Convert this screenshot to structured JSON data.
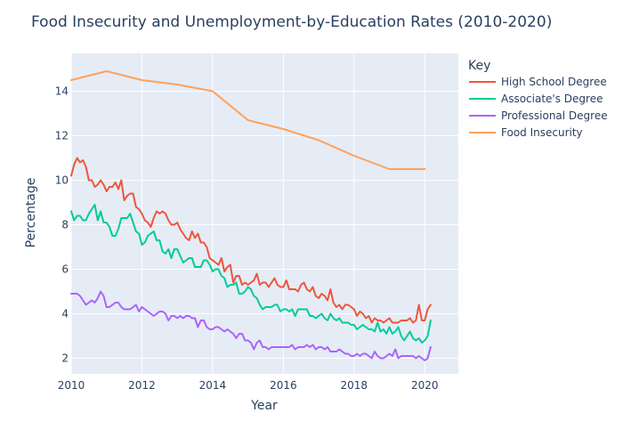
{
  "chart_data": {
    "type": "line",
    "title": "Food Insecurity and Unemployment-by-Education Rates (2010-2020)",
    "xlabel": "Year",
    "ylabel": "Percentage",
    "xlim": [
      2010,
      2020.95
    ],
    "ylim": [
      1.3,
      15.7
    ],
    "xticks": [
      2010,
      2012,
      2014,
      2016,
      2018,
      2020
    ],
    "yticks": [
      2,
      4,
      6,
      8,
      10,
      12,
      14
    ],
    "grid": true,
    "legend": {
      "title": "Key",
      "placement": "right"
    },
    "series": [
      {
        "name": "High School Degree",
        "color": "#EF553B",
        "x": [
          2010.0,
          2010.083,
          2010.167,
          2010.25,
          2010.333,
          2010.417,
          2010.5,
          2010.583,
          2010.667,
          2010.75,
          2010.833,
          2010.917,
          2011.0,
          2011.083,
          2011.167,
          2011.25,
          2011.333,
          2011.417,
          2011.5,
          2011.583,
          2011.667,
          2011.75,
          2011.833,
          2011.917,
          2012.0,
          2012.083,
          2012.167,
          2012.25,
          2012.333,
          2012.417,
          2012.5,
          2012.583,
          2012.667,
          2012.75,
          2012.833,
          2012.917,
          2013.0,
          2013.083,
          2013.167,
          2013.25,
          2013.333,
          2013.417,
          2013.5,
          2013.583,
          2013.667,
          2013.75,
          2013.833,
          2013.917,
          2014.0,
          2014.083,
          2014.167,
          2014.25,
          2014.333,
          2014.417,
          2014.5,
          2014.583,
          2014.667,
          2014.75,
          2014.833,
          2014.917,
          2015.0,
          2015.083,
          2015.167,
          2015.25,
          2015.333,
          2015.417,
          2015.5,
          2015.583,
          2015.667,
          2015.75,
          2015.833,
          2015.917,
          2016.0,
          2016.083,
          2016.167,
          2016.25,
          2016.333,
          2016.417,
          2016.5,
          2016.583,
          2016.667,
          2016.75,
          2016.833,
          2016.917,
          2017.0,
          2017.083,
          2017.167,
          2017.25,
          2017.333,
          2017.417,
          2017.5,
          2017.583,
          2017.667,
          2017.75,
          2017.833,
          2017.917,
          2018.0,
          2018.083,
          2018.167,
          2018.25,
          2018.333,
          2018.417,
          2018.5,
          2018.583,
          2018.667,
          2018.75,
          2018.833,
          2018.917,
          2019.0,
          2019.083,
          2019.167,
          2019.25,
          2019.333,
          2019.417,
          2019.5,
          2019.583,
          2019.667,
          2019.75,
          2019.833,
          2019.917,
          2020.0,
          2020.083,
          2020.167
        ],
        "y": [
          10.2,
          10.7,
          11.0,
          10.8,
          10.9,
          10.6,
          10.0,
          10.0,
          9.7,
          9.8,
          10.0,
          9.8,
          9.5,
          9.7,
          9.7,
          9.9,
          9.6,
          10.0,
          9.1,
          9.3,
          9.4,
          9.4,
          8.8,
          8.7,
          8.5,
          8.2,
          8.1,
          7.9,
          8.3,
          8.6,
          8.5,
          8.6,
          8.5,
          8.2,
          8.0,
          8.0,
          8.1,
          7.8,
          7.6,
          7.4,
          7.3,
          7.7,
          7.4,
          7.6,
          7.2,
          7.2,
          7.0,
          6.5,
          6.4,
          6.3,
          6.2,
          6.5,
          5.9,
          6.1,
          6.2,
          5.4,
          5.7,
          5.7,
          5.3,
          5.4,
          5.3,
          5.4,
          5.5,
          5.8,
          5.3,
          5.4,
          5.4,
          5.2,
          5.4,
          5.6,
          5.3,
          5.2,
          5.2,
          5.5,
          5.1,
          5.1,
          5.1,
          5.0,
          5.3,
          5.4,
          5.1,
          5.0,
          5.2,
          4.8,
          4.7,
          4.9,
          4.8,
          4.6,
          5.1,
          4.5,
          4.3,
          4.4,
          4.2,
          4.4,
          4.4,
          4.3,
          4.2,
          3.9,
          4.1,
          4.0,
          3.8,
          3.9,
          3.6,
          3.8,
          3.7,
          3.7,
          3.6,
          3.7,
          3.8,
          3.6,
          3.6,
          3.6,
          3.7,
          3.7,
          3.7,
          3.8,
          3.6,
          3.7,
          4.4,
          3.7,
          3.7,
          4.2,
          4.4
        ]
      },
      {
        "name": "Associate's Degree",
        "color": "#00CC96",
        "x": [
          2010.0,
          2010.083,
          2010.167,
          2010.25,
          2010.333,
          2010.417,
          2010.5,
          2010.583,
          2010.667,
          2010.75,
          2010.833,
          2010.917,
          2011.0,
          2011.083,
          2011.167,
          2011.25,
          2011.333,
          2011.417,
          2011.5,
          2011.583,
          2011.667,
          2011.75,
          2011.833,
          2011.917,
          2012.0,
          2012.083,
          2012.167,
          2012.25,
          2012.333,
          2012.417,
          2012.5,
          2012.583,
          2012.667,
          2012.75,
          2012.833,
          2012.917,
          2013.0,
          2013.083,
          2013.167,
          2013.25,
          2013.333,
          2013.417,
          2013.5,
          2013.583,
          2013.667,
          2013.75,
          2013.833,
          2013.917,
          2014.0,
          2014.083,
          2014.167,
          2014.25,
          2014.333,
          2014.417,
          2014.5,
          2014.583,
          2014.667,
          2014.75,
          2014.833,
          2014.917,
          2015.0,
          2015.083,
          2015.167,
          2015.25,
          2015.333,
          2015.417,
          2015.5,
          2015.583,
          2015.667,
          2015.75,
          2015.833,
          2015.917,
          2016.0,
          2016.083,
          2016.167,
          2016.25,
          2016.333,
          2016.417,
          2016.5,
          2016.583,
          2016.667,
          2016.75,
          2016.833,
          2016.917,
          2017.0,
          2017.083,
          2017.167,
          2017.25,
          2017.333,
          2017.417,
          2017.5,
          2017.583,
          2017.667,
          2017.75,
          2017.833,
          2017.917,
          2018.0,
          2018.083,
          2018.167,
          2018.25,
          2018.333,
          2018.417,
          2018.5,
          2018.583,
          2018.667,
          2018.75,
          2018.833,
          2018.917,
          2019.0,
          2019.083,
          2019.167,
          2019.25,
          2019.333,
          2019.417,
          2019.5,
          2019.583,
          2019.667,
          2019.75,
          2019.833,
          2019.917,
          2020.0,
          2020.083,
          2020.167
        ],
        "y": [
          8.6,
          8.2,
          8.4,
          8.4,
          8.2,
          8.2,
          8.5,
          8.7,
          8.9,
          8.2,
          8.6,
          8.1,
          8.1,
          7.9,
          7.5,
          7.5,
          7.8,
          8.3,
          8.3,
          8.3,
          8.5,
          8.1,
          7.7,
          7.6,
          7.1,
          7.2,
          7.5,
          7.6,
          7.7,
          7.3,
          7.3,
          6.8,
          6.7,
          6.9,
          6.5,
          6.9,
          6.9,
          6.6,
          6.3,
          6.4,
          6.5,
          6.5,
          6.1,
          6.1,
          6.1,
          6.4,
          6.4,
          6.2,
          5.9,
          6.0,
          6.0,
          5.7,
          5.6,
          5.2,
          5.3,
          5.3,
          5.4,
          4.9,
          4.9,
          5.0,
          5.2,
          5.1,
          4.8,
          4.7,
          4.4,
          4.2,
          4.3,
          4.3,
          4.3,
          4.4,
          4.4,
          4.1,
          4.2,
          4.2,
          4.1,
          4.2,
          3.9,
          4.2,
          4.2,
          4.2,
          4.2,
          3.9,
          3.9,
          3.8,
          3.9,
          4.0,
          3.8,
          3.7,
          4.0,
          3.8,
          3.7,
          3.8,
          3.6,
          3.6,
          3.6,
          3.5,
          3.5,
          3.3,
          3.4,
          3.5,
          3.4,
          3.3,
          3.3,
          3.2,
          3.6,
          3.2,
          3.3,
          3.1,
          3.4,
          3.1,
          3.2,
          3.4,
          3.0,
          2.8,
          3.0,
          3.2,
          2.9,
          2.8,
          2.9,
          2.7,
          2.8,
          3.0,
          3.7
        ]
      },
      {
        "name": "Professional Degree",
        "color": "#AB63FA",
        "x": [
          2010.0,
          2010.083,
          2010.167,
          2010.25,
          2010.333,
          2010.417,
          2010.5,
          2010.583,
          2010.667,
          2010.75,
          2010.833,
          2010.917,
          2011.0,
          2011.083,
          2011.167,
          2011.25,
          2011.333,
          2011.417,
          2011.5,
          2011.583,
          2011.667,
          2011.75,
          2011.833,
          2011.917,
          2012.0,
          2012.083,
          2012.167,
          2012.25,
          2012.333,
          2012.417,
          2012.5,
          2012.583,
          2012.667,
          2012.75,
          2012.833,
          2012.917,
          2013.0,
          2013.083,
          2013.167,
          2013.25,
          2013.333,
          2013.417,
          2013.5,
          2013.583,
          2013.667,
          2013.75,
          2013.833,
          2013.917,
          2014.0,
          2014.083,
          2014.167,
          2014.25,
          2014.333,
          2014.417,
          2014.5,
          2014.583,
          2014.667,
          2014.75,
          2014.833,
          2014.917,
          2015.0,
          2015.083,
          2015.167,
          2015.25,
          2015.333,
          2015.417,
          2015.5,
          2015.583,
          2015.667,
          2015.75,
          2015.833,
          2015.917,
          2016.0,
          2016.083,
          2016.167,
          2016.25,
          2016.333,
          2016.417,
          2016.5,
          2016.583,
          2016.667,
          2016.75,
          2016.833,
          2016.917,
          2017.0,
          2017.083,
          2017.167,
          2017.25,
          2017.333,
          2017.417,
          2017.5,
          2017.583,
          2017.667,
          2017.75,
          2017.833,
          2017.917,
          2018.0,
          2018.083,
          2018.167,
          2018.25,
          2018.333,
          2018.417,
          2018.5,
          2018.583,
          2018.667,
          2018.75,
          2018.833,
          2018.917,
          2019.0,
          2019.083,
          2019.167,
          2019.25,
          2019.333,
          2019.417,
          2019.5,
          2019.583,
          2019.667,
          2019.75,
          2019.833,
          2019.917,
          2020.0,
          2020.083,
          2020.167
        ],
        "y": [
          4.9,
          4.9,
          4.9,
          4.8,
          4.6,
          4.4,
          4.5,
          4.6,
          4.5,
          4.7,
          5.0,
          4.8,
          4.3,
          4.3,
          4.4,
          4.5,
          4.5,
          4.3,
          4.2,
          4.2,
          4.2,
          4.3,
          4.4,
          4.1,
          4.3,
          4.2,
          4.1,
          4.0,
          3.9,
          4.0,
          4.1,
          4.1,
          4.0,
          3.7,
          3.9,
          3.9,
          3.8,
          3.9,
          3.8,
          3.9,
          3.9,
          3.8,
          3.8,
          3.4,
          3.7,
          3.7,
          3.4,
          3.3,
          3.3,
          3.4,
          3.4,
          3.3,
          3.2,
          3.3,
          3.2,
          3.1,
          2.9,
          3.1,
          3.1,
          2.8,
          2.8,
          2.7,
          2.4,
          2.7,
          2.8,
          2.5,
          2.5,
          2.4,
          2.5,
          2.5,
          2.5,
          2.5,
          2.5,
          2.5,
          2.5,
          2.6,
          2.4,
          2.5,
          2.5,
          2.5,
          2.6,
          2.5,
          2.6,
          2.4,
          2.5,
          2.5,
          2.4,
          2.5,
          2.3,
          2.3,
          2.3,
          2.4,
          2.3,
          2.2,
          2.2,
          2.1,
          2.1,
          2.2,
          2.1,
          2.2,
          2.2,
          2.1,
          2.0,
          2.3,
          2.1,
          2.0,
          2.0,
          2.1,
          2.2,
          2.1,
          2.4,
          2.0,
          2.1,
          2.1,
          2.1,
          2.1,
          2.1,
          2.0,
          2.1,
          2.0,
          1.9,
          2.0,
          2.5
        ]
      },
      {
        "name": "Food Insecurity",
        "color": "#FFA15A",
        "x": [
          2010,
          2011,
          2012,
          2013,
          2014,
          2015,
          2016,
          2017,
          2018,
          2019,
          2020
        ],
        "y": [
          14.5,
          14.9,
          14.5,
          14.3,
          14.0,
          12.7,
          12.3,
          11.8,
          11.1,
          10.5,
          10.5
        ]
      }
    ]
  }
}
